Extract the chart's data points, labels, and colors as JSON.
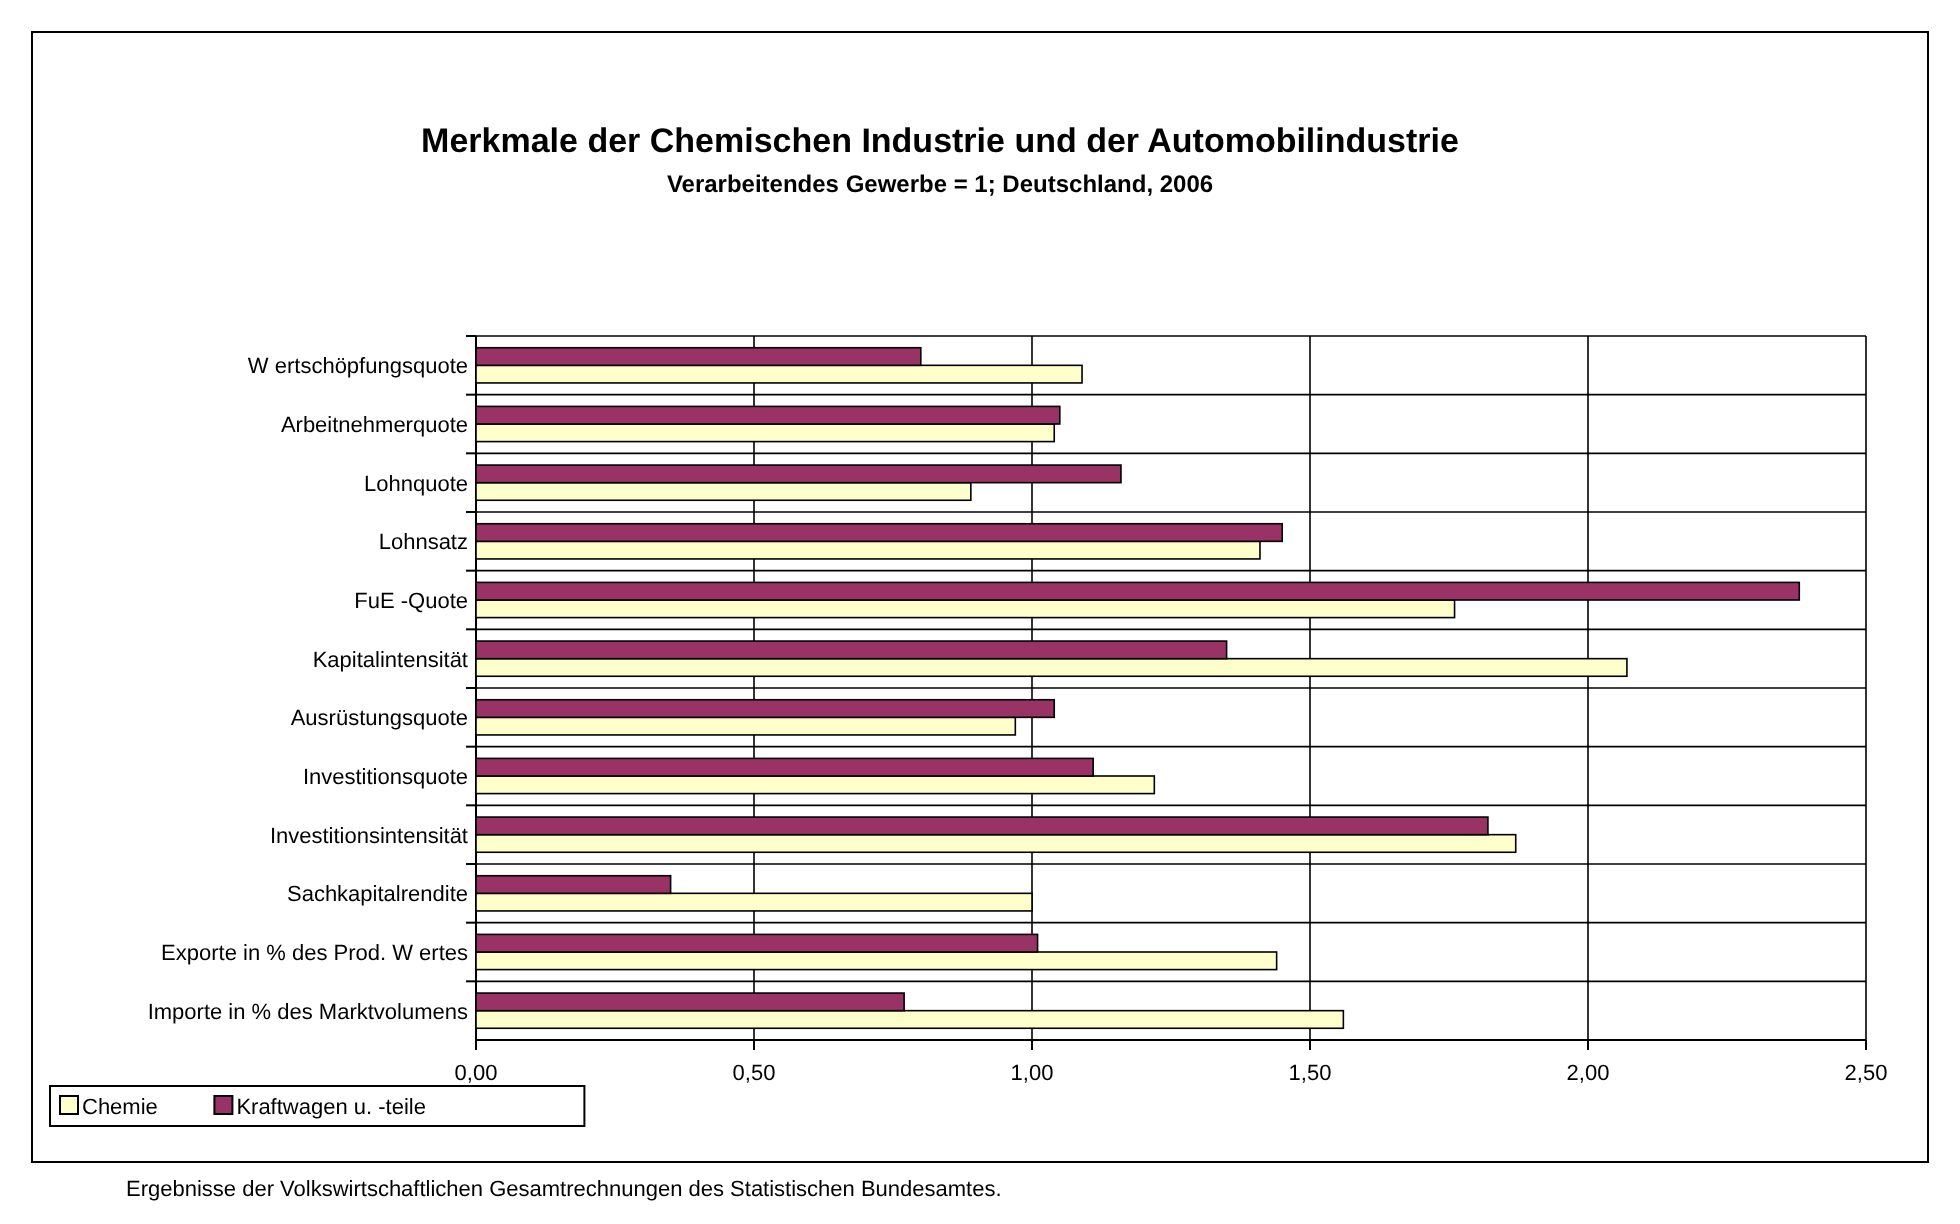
{
  "chart_data": {
    "type": "bar",
    "orientation": "horizontal",
    "title": "Merkmale der Chemischen Industrie und der Automobilindustrie",
    "subtitle": "Verarbeitendes Gewerbe = 1; Deutschland, 2006",
    "categories": [
      "W ertschöpfungsquote",
      "Arbeitnehmerquote",
      "Lohnquote",
      "Lohnsatz",
      "FuE -Quote",
      "Kapitalintensität",
      "Ausrüstungsquote",
      "Investitionsquote",
      "Investitionsintensität",
      "Sachkapitalrendite",
      "Exporte in % des Prod. W ertes",
      "Importe in % des Marktvolumens"
    ],
    "series": [
      {
        "name": "Chemie",
        "color": "#ffffcc",
        "values": [
          1.09,
          1.04,
          0.89,
          1.41,
          1.76,
          2.07,
          0.97,
          1.22,
          1.87,
          1.0,
          1.44,
          1.56
        ]
      },
      {
        "name": "Kraftwagen u. -teile",
        "color": "#993366",
        "values": [
          0.8,
          1.05,
          1.16,
          1.45,
          2.38,
          1.35,
          1.04,
          1.11,
          1.82,
          0.35,
          1.01,
          0.77
        ]
      }
    ],
    "xlim": [
      0,
      2.5
    ],
    "xticks": [
      {
        "value": 0,
        "label": "0,00"
      },
      {
        "value": 0.5,
        "label": "0,50"
      },
      {
        "value": 1,
        "label": "1,00"
      },
      {
        "value": 1.5,
        "label": "1,50"
      },
      {
        "value": 2,
        "label": "2,00"
      },
      {
        "value": 2.5,
        "label": "2,50"
      }
    ],
    "grid": true,
    "legend": "bottom left",
    "annotations": [
      "Ergebnisse der Volkswirtschaftlichen Gesamtrechnungen des Statistischen Bundesamtes."
    ]
  }
}
